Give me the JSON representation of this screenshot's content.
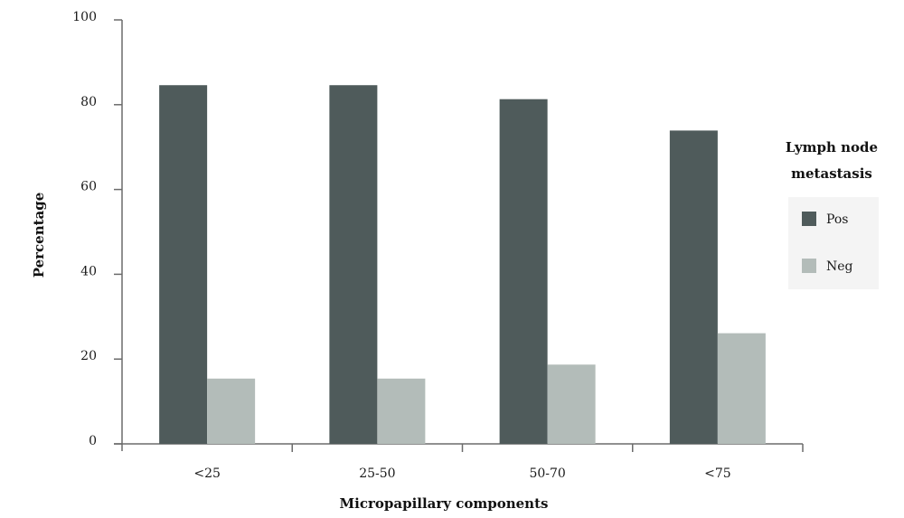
{
  "chart_data": {
    "type": "bar",
    "title": "",
    "xlabel": "Micropapillary components",
    "ylabel": "Percentage",
    "ylim": [
      0,
      100
    ],
    "yticks": [
      0,
      20,
      40,
      60,
      80,
      100
    ],
    "categories": [
      "<25",
      "25-50",
      "50-70",
      "<75"
    ],
    "series": [
      {
        "name": "Pos",
        "color": "#4f5b5b",
        "values": [
          84.6,
          84.6,
          81.3,
          73.9
        ]
      },
      {
        "name": "Neg",
        "color": "#b3bcb9",
        "values": [
          15.4,
          15.4,
          18.7,
          26.1
        ]
      }
    ],
    "legend": {
      "title_line1": "Lymph node",
      "title_line2": "metastasis",
      "placement": "right"
    },
    "grid": false
  }
}
